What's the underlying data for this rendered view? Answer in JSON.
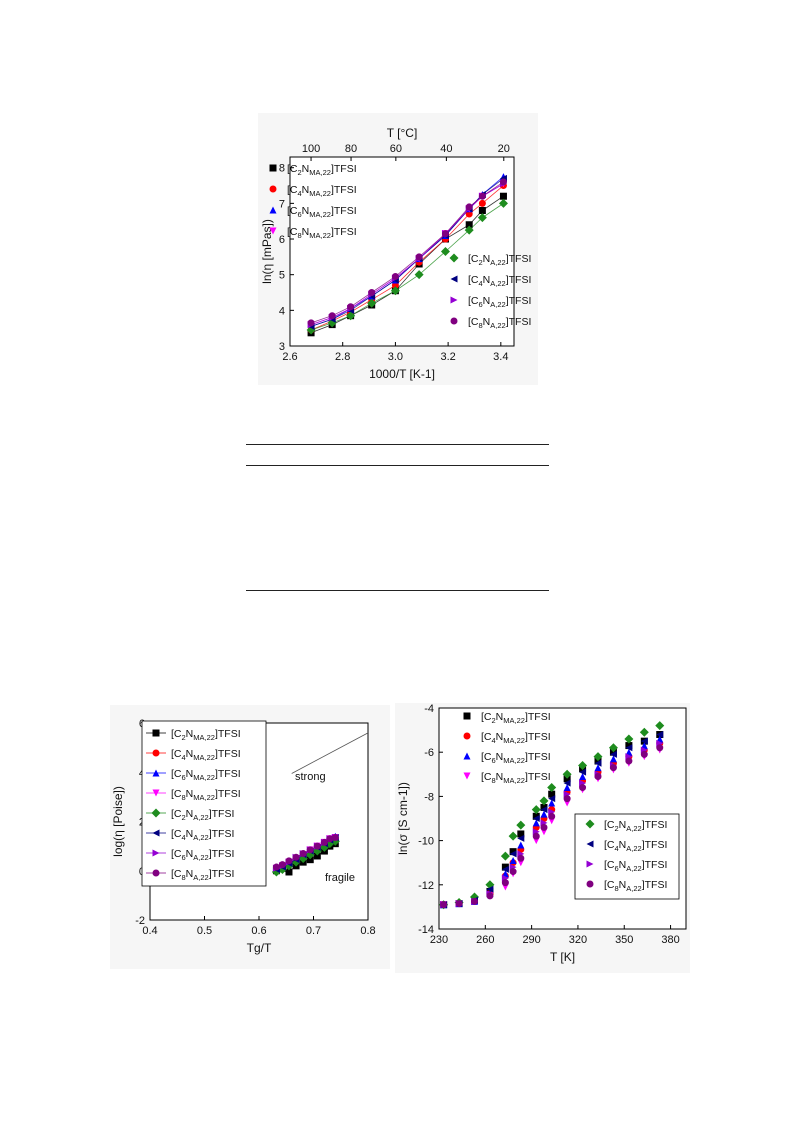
{
  "chart_data": [
    {
      "type": "scatter",
      "xlabel": "1000/T [K-1]",
      "ylabel": "ln(η [mPas])",
      "top_axis_label": "T [°C]",
      "top_ticks": [
        "100",
        "80",
        "60",
        "40",
        "20"
      ],
      "top_tick_values": [
        100,
        80,
        60,
        40,
        20
      ],
      "xlim": [
        2.6,
        3.45
      ],
      "ylim": [
        3,
        8.3
      ],
      "xticks": [
        "2.6",
        "2.8",
        "3.0",
        "3.2",
        "3.4"
      ],
      "yticks": [
        "3",
        "4",
        "5",
        "6",
        "7",
        "8"
      ],
      "x": [
        2.68,
        2.76,
        2.83,
        2.91,
        3.0,
        3.09,
        3.19,
        3.28,
        3.33,
        3.41
      ],
      "legend_groups": [
        {
          "position": "top-left",
          "items": [
            {
              "base": "[C",
              "s1": "2",
              "mid": "N",
              "s2": "MA,22",
              "tail": "]TFSI"
            },
            {
              "base": "[C",
              "s1": "4",
              "mid": "N",
              "s2": "MA,22",
              "tail": "]TFSI"
            },
            {
              "base": "[C",
              "s1": "6",
              "mid": "N",
              "s2": "MA,22",
              "tail": "]TFSI"
            },
            {
              "base": "[C",
              "s1": "8",
              "mid": "N",
              "s2": "MA,22",
              "tail": "]TFSI"
            }
          ]
        },
        {
          "position": "bottom-right",
          "items": [
            {
              "base": "[C",
              "s1": "2",
              "mid": "N",
              "s2": "A,22",
              "tail": "]TFSI"
            },
            {
              "base": "[C",
              "s1": "4",
              "mid": "N",
              "s2": "A,22",
              "tail": "]TFSI"
            },
            {
              "base": "[C",
              "s1": "6",
              "mid": "N",
              "s2": "A,22",
              "tail": "]TFSI"
            },
            {
              "base": "[C",
              "s1": "8",
              "mid": "N",
              "s2": "A,22",
              "tail": "]TFSI"
            }
          ]
        }
      ],
      "series": [
        {
          "name": "[C2NMA,22]TFSI",
          "color": "#000000",
          "marker": "square",
          "values": [
            3.37,
            3.6,
            3.85,
            4.15,
            4.55,
            5.3,
            6.0,
            6.4,
            6.8,
            7.2
          ]
        },
        {
          "name": "[C4NMA,22]TFSI",
          "color": "#ff0000",
          "marker": "circle",
          "values": [
            3.45,
            3.7,
            3.95,
            4.3,
            4.7,
            5.35,
            6.0,
            6.7,
            7.0,
            7.5
          ]
        },
        {
          "name": "[C6NMA,22]TFSI",
          "color": "#0000ff",
          "marker": "triangle-up",
          "values": [
            3.55,
            3.75,
            4.05,
            4.4,
            4.85,
            5.45,
            6.1,
            6.85,
            7.25,
            7.75
          ]
        },
        {
          "name": "[C8NMA,22]TFSI",
          "color": "#ff00ff",
          "marker": "triangle-down",
          "values": [
            3.6,
            3.8,
            4.05,
            4.45,
            4.9,
            5.45,
            6.15,
            6.85,
            7.2,
            7.55
          ]
        },
        {
          "name": "[C2NA,22]TFSI",
          "color": "#1e8c1e",
          "marker": "diamond",
          "values": [
            3.45,
            3.65,
            3.85,
            4.2,
            4.55,
            5.0,
            5.65,
            6.25,
            6.6,
            7.0
          ]
        },
        {
          "name": "[C4NA,22]TFSI",
          "color": "#000080",
          "marker": "triangle-left",
          "values": [
            3.55,
            3.75,
            4.0,
            4.4,
            4.85,
            5.45,
            6.1,
            6.85,
            7.25,
            7.7
          ]
        },
        {
          "name": "[C6NA,22]TFSI",
          "color": "#9400d3",
          "marker": "triangle-right",
          "values": [
            3.6,
            3.8,
            4.05,
            4.45,
            4.9,
            5.45,
            6.15,
            6.85,
            7.2,
            7.55
          ]
        },
        {
          "name": "[C8NA,22]TFSI",
          "color": "#800080",
          "marker": "circle",
          "values": [
            3.65,
            3.85,
            4.1,
            4.5,
            4.95,
            5.5,
            6.15,
            6.9,
            7.2,
            7.6
          ]
        }
      ]
    },
    {
      "type": "scatter",
      "xlabel": "Tg/T",
      "ylabel": "log(η [Poise])",
      "xlim": [
        0.4,
        0.8
      ],
      "ylim": [
        -2,
        6
      ],
      "xticks": [
        "0.4",
        "0.5",
        "0.6",
        "0.7",
        "0.8"
      ],
      "yticks": [
        "-2",
        "0",
        "2",
        "4",
        "6"
      ],
      "annotations": [
        "strong",
        "fragile"
      ],
      "strong_line": {
        "x": [
          0.66,
          0.8
        ],
        "y": [
          3.95,
          5.6
        ]
      },
      "x": [
        0.632,
        0.643,
        0.655,
        0.668,
        0.681,
        0.694,
        0.707,
        0.72,
        0.73,
        0.74
      ],
      "legend_groups": [
        {
          "position": "top-left",
          "items": [
            {
              "base": "[C",
              "s1": "2",
              "mid": "N",
              "s2": "MA,22",
              "tail": "]TFSI"
            },
            {
              "base": "[C",
              "s1": "4",
              "mid": "N",
              "s2": "MA,22",
              "tail": "]TFSI"
            },
            {
              "base": "[C",
              "s1": "6",
              "mid": "N",
              "s2": "MA,22",
              "tail": "]TFSI"
            },
            {
              "base": "[C",
              "s1": "8",
              "mid": "N",
              "s2": "MA,22",
              "tail": "]TFSI"
            },
            {
              "base": "[C",
              "s1": "2",
              "mid": "N",
              "s2": "A,22",
              "tail": "]TFSI"
            },
            {
              "base": "[C",
              "s1": "4",
              "mid": "N",
              "s2": "A,22",
              "tail": "]TFSI"
            },
            {
              "base": "[C",
              "s1": "6",
              "mid": "N",
              "s2": "A,22",
              "tail": "]TFSI"
            },
            {
              "base": "[C",
              "s1": "8",
              "mid": "N",
              "s2": "A,22",
              "tail": "]TFSI"
            }
          ]
        }
      ],
      "series": [
        {
          "name": "[C2NMA,22]TFSI",
          "color": "#000000",
          "marker": "square",
          "values": [
            0.0,
            0.1,
            -0.05,
            0.2,
            0.35,
            0.45,
            0.6,
            0.8,
            1.0,
            1.1
          ]
        },
        {
          "name": "[C4NMA,22]TFSI",
          "color": "#ff0000",
          "marker": "circle",
          "values": [
            0.05,
            0.15,
            0.3,
            0.45,
            0.6,
            0.75,
            0.9,
            1.05,
            1.2,
            1.3
          ]
        },
        {
          "name": "[C6NMA,22]TFSI",
          "color": "#0000ff",
          "marker": "triangle-up",
          "values": [
            0.1,
            0.2,
            0.35,
            0.5,
            0.65,
            0.8,
            0.95,
            1.1,
            1.3,
            1.4
          ]
        },
        {
          "name": "[C8NMA,22]TFSI",
          "color": "#ff00ff",
          "marker": "triangle-down",
          "values": [
            0.1,
            0.2,
            0.35,
            0.5,
            0.65,
            0.85,
            1.0,
            1.15,
            1.3,
            1.35
          ]
        },
        {
          "name": "[C2NA,22]TFSI",
          "color": "#1e8c1e",
          "marker": "diamond",
          "values": [
            -0.05,
            0.05,
            0.2,
            0.35,
            0.5,
            0.65,
            0.8,
            0.95,
            1.1,
            1.2
          ]
        },
        {
          "name": "[C4NA,22]TFSI",
          "color": "#000080",
          "marker": "triangle-left",
          "values": [
            0.05,
            0.15,
            0.3,
            0.45,
            0.65,
            0.8,
            0.95,
            1.1,
            1.25,
            1.35
          ]
        },
        {
          "name": "[C6NA,22]TFSI",
          "color": "#9400d3",
          "marker": "triangle-right",
          "values": [
            0.1,
            0.2,
            0.35,
            0.55,
            0.7,
            0.85,
            1.0,
            1.15,
            1.3,
            1.35
          ]
        },
        {
          "name": "[C8NA,22]TFSI",
          "color": "#800080",
          "marker": "circle",
          "values": [
            0.15,
            0.25,
            0.4,
            0.55,
            0.7,
            0.85,
            1.0,
            1.15,
            1.3,
            1.35
          ]
        }
      ]
    },
    {
      "type": "scatter",
      "xlabel": "T [K]",
      "ylabel": "ln(σ [S cm-1])",
      "xlim": [
        230,
        390
      ],
      "ylim": [
        -14,
        -4
      ],
      "xticks": [
        "230",
        "260",
        "290",
        "320",
        "350",
        "380"
      ],
      "yticks": [
        "-4",
        "-6",
        "-8",
        "-10",
        "-12",
        "-14"
      ],
      "x": [
        233,
        243,
        253,
        263,
        273,
        278,
        283,
        293,
        298,
        303,
        313,
        323,
        333,
        343,
        353,
        363,
        373
      ],
      "legend_groups": [
        {
          "position": "top-left",
          "items": [
            {
              "base": "[C",
              "s1": "2",
              "mid": "N",
              "s2": "MA,22",
              "tail": "]TFSI"
            },
            {
              "base": "[C",
              "s1": "4",
              "mid": "N",
              "s2": "MA,22",
              "tail": "]TFSI"
            },
            {
              "base": "[C",
              "s1": "6",
              "mid": "N",
              "s2": "MA,22",
              "tail": "]TFSI"
            },
            {
              "base": "[C",
              "s1": "8",
              "mid": "N",
              "s2": "MA,22",
              "tail": "]TFSI"
            }
          ]
        },
        {
          "position": "bottom-right",
          "items": [
            {
              "base": "[C",
              "s1": "2",
              "mid": "N",
              "s2": "A,22",
              "tail": "]TFSI"
            },
            {
              "base": "[C",
              "s1": "4",
              "mid": "N",
              "s2": "A,22",
              "tail": "]TFSI"
            },
            {
              "base": "[C",
              "s1": "6",
              "mid": "N",
              "s2": "A,22",
              "tail": "]TFSI"
            },
            {
              "base": "[C",
              "s1": "8",
              "mid": "N",
              "s2": "A,22",
              "tail": "]TFSI"
            }
          ]
        }
      ],
      "series": [
        {
          "name": "[C2NMA,22]TFSI",
          "color": "#000000",
          "marker": "square",
          "values": [
            -12.9,
            -12.85,
            -12.7,
            -12.3,
            -11.2,
            -10.5,
            -9.7,
            -8.9,
            -8.5,
            -7.9,
            -7.2,
            -6.75,
            -6.4,
            -6.0,
            -5.7,
            -5.5,
            -5.2
          ]
        },
        {
          "name": "[C4NMA,22]TFSI",
          "color": "#ff0000",
          "marker": "circle",
          "values": [
            -12.9,
            -12.85,
            -12.75,
            -12.4,
            -11.6,
            -11.0,
            -10.4,
            -9.4,
            -9.0,
            -8.6,
            -7.8,
            -7.3,
            -6.9,
            -6.5,
            -6.2,
            -5.9,
            -5.6
          ]
        },
        {
          "name": "[C6NMA,22]TFSI",
          "color": "#0000ff",
          "marker": "triangle-up",
          "values": [
            -12.9,
            -12.85,
            -12.75,
            -12.4,
            -11.5,
            -10.9,
            -10.2,
            -9.2,
            -8.8,
            -8.3,
            -7.6,
            -7.1,
            -6.7,
            -6.3,
            -6.0,
            -5.7,
            -5.4
          ]
        },
        {
          "name": "[C8NMA,22]TFSI",
          "color": "#ff00ff",
          "marker": "triangle-down",
          "values": [
            -12.9,
            -12.85,
            -12.75,
            -12.5,
            -12.1,
            -11.5,
            -11.0,
            -10.0,
            -9.6,
            -9.1,
            -8.3,
            -7.7,
            -7.2,
            -6.8,
            -6.5,
            -6.2,
            -5.9
          ]
        },
        {
          "name": "[C2NA,22]TFSI",
          "color": "#1e8c1e",
          "marker": "diamond",
          "values": [
            -12.9,
            -12.8,
            -12.55,
            -12.0,
            -10.7,
            -9.8,
            -9.3,
            -8.6,
            -8.2,
            -7.6,
            -7.0,
            -6.6,
            -6.2,
            -5.8,
            -5.4,
            -5.1,
            -4.8
          ]
        },
        {
          "name": "[C4NA,22]TFSI",
          "color": "#000080",
          "marker": "triangle-left",
          "values": [
            -12.9,
            -12.85,
            -12.7,
            -12.2,
            -11.3,
            -10.6,
            -9.9,
            -9.0,
            -8.6,
            -8.1,
            -7.4,
            -6.9,
            -6.5,
            -6.1,
            -5.8,
            -5.5,
            -5.2
          ]
        },
        {
          "name": "[C6NA,22]TFSI",
          "color": "#9400d3",
          "marker": "triangle-right",
          "values": [
            -12.9,
            -12.85,
            -12.75,
            -12.4,
            -11.7,
            -11.2,
            -10.6,
            -9.6,
            -9.2,
            -8.7,
            -7.9,
            -7.4,
            -7.0,
            -6.6,
            -6.2,
            -5.9,
            -5.6
          ]
        },
        {
          "name": "[C8NA,22]TFSI",
          "color": "#800080",
          "marker": "circle",
          "values": [
            -12.9,
            -12.85,
            -12.75,
            -12.5,
            -11.9,
            -11.4,
            -10.8,
            -9.8,
            -9.4,
            -8.9,
            -8.1,
            -7.6,
            -7.1,
            -6.7,
            -6.4,
            -6.1,
            -5.8
          ]
        }
      ]
    }
  ]
}
